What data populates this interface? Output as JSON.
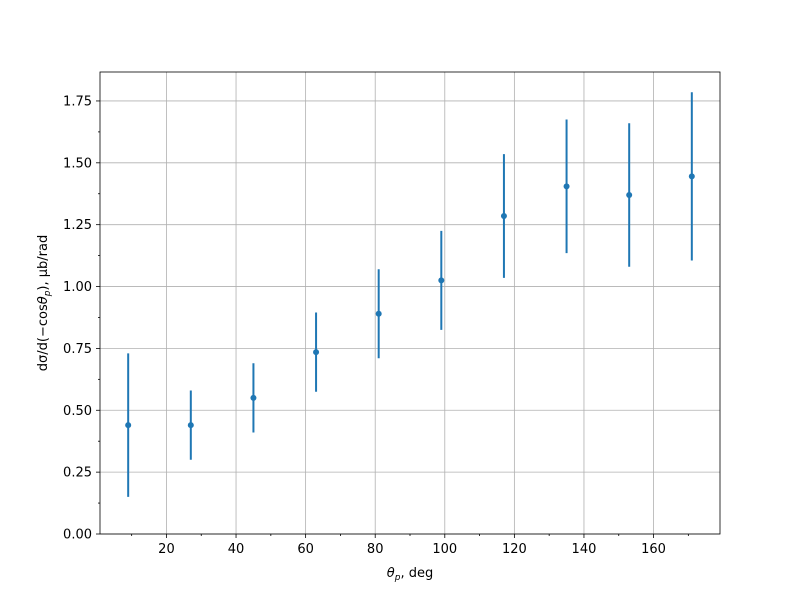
{
  "chart_data": {
    "type": "errorbar",
    "xlabel": {
      "sym": "θ",
      "sub": "p",
      "post": ", deg"
    },
    "ylabel": {
      "pre": "dσ/d(−cos",
      "sym": "θ",
      "sub": "p",
      "post": "), μb/rad"
    },
    "x": [
      9,
      27,
      45,
      63,
      81,
      99,
      117,
      135,
      153,
      171
    ],
    "series": [
      {
        "color": "#1f77b4",
        "values": [
          0.44,
          0.44,
          0.55,
          0.735,
          0.89,
          1.025,
          1.285,
          1.405,
          1.37,
          1.445
        ],
        "errors": [
          0.29,
          0.14,
          0.14,
          0.16,
          0.18,
          0.2,
          0.25,
          0.27,
          0.29,
          0.34
        ]
      }
    ],
    "xlim": [
      0.9,
      179.1
    ],
    "ylim": [
      0,
      1.867
    ],
    "xticks": [
      20,
      40,
      60,
      80,
      100,
      120,
      140,
      160
    ],
    "xminorticks": [
      10,
      30,
      50,
      70,
      90,
      110,
      130,
      150,
      170
    ],
    "yticks": [
      {
        "value": 0,
        "label": "0.00"
      },
      {
        "value": 0.25,
        "label": "0.25"
      },
      {
        "value": 0.5,
        "label": "0.50"
      },
      {
        "value": 0.75,
        "label": "0.75"
      },
      {
        "value": 1,
        "label": "1.00"
      },
      {
        "value": 1.25,
        "label": "1.25"
      },
      {
        "value": 1.5,
        "label": "1.50"
      },
      {
        "value": 1.75,
        "label": "1.75"
      }
    ],
    "yminorticks": [
      0.125,
      0.375,
      0.625,
      0.875,
      1.125,
      1.375,
      1.625
    ],
    "grid": true
  }
}
